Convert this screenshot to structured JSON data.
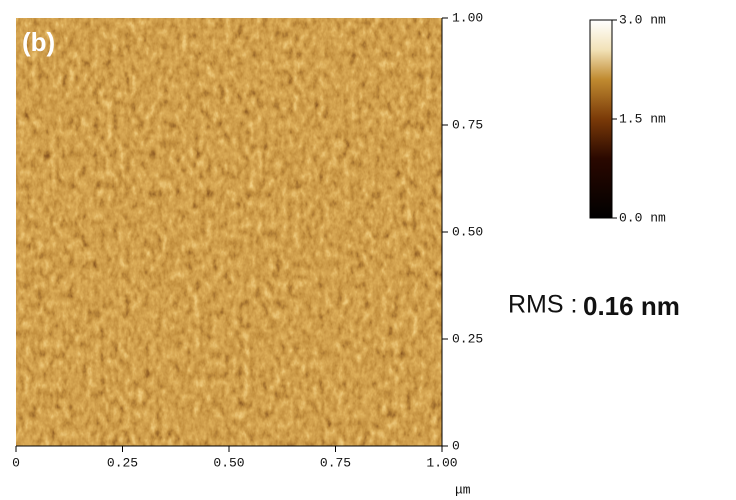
{
  "chart_data": {
    "type": "afm_image",
    "panel_label": "(b)",
    "x_unit": "μm",
    "xlim": [
      0,
      1
    ],
    "ylim": [
      0,
      1
    ],
    "xticks": [
      0,
      0.25,
      {
        "value": 0.5,
        "label": "0.50"
      },
      0.75,
      {
        "value": 1,
        "label": "1.00"
      }
    ],
    "yticks": [
      0,
      0.25,
      {
        "value": 0.5,
        "label": "0.50"
      },
      0.75,
      {
        "value": 1,
        "label": "1.00"
      }
    ],
    "colorbar_lim": [
      0,
      3
    ],
    "colorbar_ticks": [
      {
        "value": 0,
        "label": "0.0 nm"
      },
      {
        "value": 1.5,
        "label": "1.5 nm"
      },
      {
        "value": 3,
        "label": "3.0 nm"
      }
    ],
    "annotations": [
      "RMS :",
      "0.16 nm"
    ]
  }
}
